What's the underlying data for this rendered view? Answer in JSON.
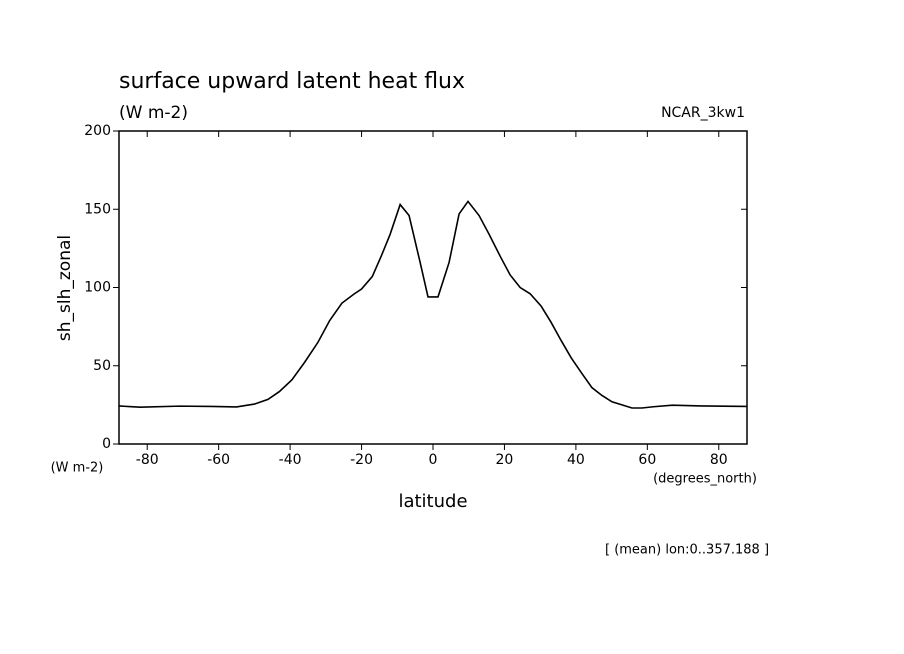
{
  "chart_data": {
    "type": "line",
    "title": "surface upward latent heat flux",
    "subtitle": "(W m-2)",
    "dataset": "NCAR_3kw1",
    "ylabel": "sh_slh_zonal",
    "yunits": "(W m-2)",
    "xlabel": "latitude",
    "xunits": "(degrees_north)",
    "note": "[ (mean) lon:0..357.188 ]",
    "color": "#000000",
    "x": [
      -87.9,
      -82,
      -71,
      -62,
      -55,
      -50,
      -46.2,
      -43,
      -39.5,
      -36,
      -32.2,
      -28.9,
      -25.5,
      -22,
      -20,
      -17,
      -14.5,
      -12,
      -9.2,
      -6.7,
      -3.6,
      -1.4,
      1.4,
      4.5,
      7.3,
      9.8,
      12.9,
      15.7,
      18.8,
      21.6,
      24.4,
      27.2,
      30.3,
      33,
      35.9,
      38.7,
      41.7,
      44.5,
      47.3,
      50.1,
      52.9,
      55.7,
      58.5,
      61.7,
      67,
      75,
      87.9
    ],
    "values": [
      24.3,
      23.5,
      24.2,
      24,
      23.7,
      25.5,
      28.5,
      33.5,
      41,
      52,
      65,
      79,
      90,
      96,
      99,
      107,
      120,
      134,
      153,
      146,
      116,
      94,
      94,
      116,
      147,
      155,
      146,
      134,
      120,
      108,
      100,
      96,
      88,
      78,
      66,
      55,
      45,
      36,
      31,
      27,
      25,
      23,
      23,
      23.8,
      24.8,
      24.3,
      24
    ],
    "xlim": [
      -87.9,
      87.9
    ],
    "ylim": [
      0,
      200
    ],
    "xticks": [
      -80,
      -60,
      -40,
      -20,
      0,
      20,
      40,
      60,
      80
    ],
    "yticks": [
      0,
      50,
      100,
      150,
      200
    ]
  }
}
